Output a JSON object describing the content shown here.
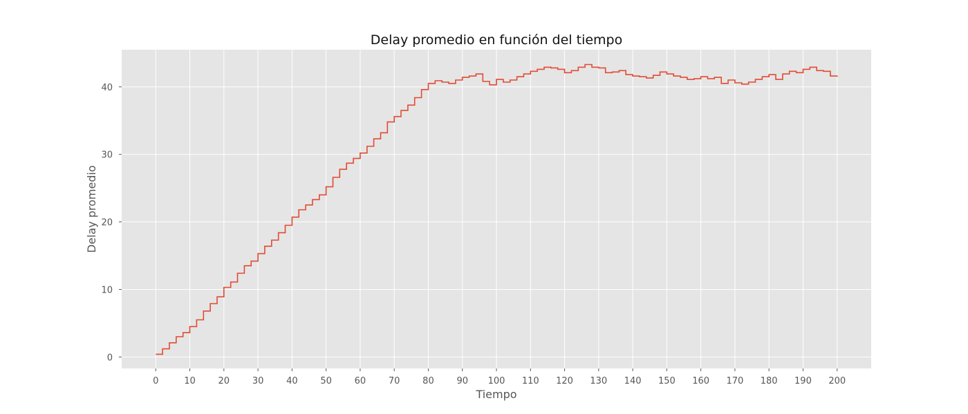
{
  "chart_data": {
    "type": "line",
    "step": true,
    "title": "Delay promedio en función del tiempo",
    "xlabel": "Tiempo",
    "ylabel": "Delay promedio",
    "xlim": [
      -10,
      210
    ],
    "ylim": [
      -1.7,
      45.5
    ],
    "xticks": [
      0,
      10,
      20,
      30,
      40,
      50,
      60,
      70,
      80,
      90,
      100,
      110,
      120,
      130,
      140,
      150,
      160,
      170,
      180,
      190,
      200
    ],
    "yticks": [
      0,
      10,
      20,
      30,
      40
    ],
    "grid": true,
    "line_color": "#E24A33",
    "background_color": "#E5E5E5",
    "grid_color": "#FFFFFF",
    "series": [
      {
        "x": [
          0,
          2,
          4,
          6,
          8,
          10,
          12,
          14,
          16,
          18,
          20,
          22,
          24,
          26,
          28,
          30,
          32,
          34,
          36,
          38,
          40,
          42,
          44,
          46,
          48,
          50,
          52,
          54,
          56,
          58,
          60,
          62,
          64,
          66,
          68,
          70,
          72,
          74,
          76,
          78,
          80,
          82,
          84,
          86,
          88,
          90,
          92,
          94,
          96,
          98,
          100,
          102,
          104,
          106,
          108,
          110,
          112,
          114,
          116,
          118,
          120,
          122,
          124,
          126,
          128,
          130,
          132,
          134,
          136,
          138,
          140,
          142,
          144,
          146,
          148,
          150,
          152,
          154,
          156,
          158,
          160,
          162,
          164,
          166,
          168,
          170,
          172,
          174,
          176,
          178,
          180,
          182,
          184,
          186,
          188,
          190,
          192,
          194,
          196,
          198,
          200
        ],
        "values": [
          0.4,
          1.2,
          2.1,
          3.0,
          3.6,
          4.5,
          5.5,
          6.8,
          7.9,
          8.9,
          10.3,
          11.1,
          12.4,
          13.5,
          14.2,
          15.3,
          16.4,
          17.3,
          18.4,
          19.5,
          20.7,
          21.8,
          22.5,
          23.3,
          24.0,
          25.2,
          26.6,
          27.8,
          28.7,
          29.4,
          30.2,
          31.2,
          32.3,
          33.2,
          34.8,
          35.6,
          36.5,
          37.3,
          38.4,
          39.6,
          40.5,
          40.9,
          40.7,
          40.5,
          41.0,
          41.4,
          41.6,
          41.9,
          40.8,
          40.3,
          41.1,
          40.7,
          41.0,
          41.5,
          41.9,
          42.3,
          42.6,
          42.9,
          42.8,
          42.6,
          42.1,
          42.4,
          42.9,
          43.3,
          42.9,
          42.8,
          42.1,
          42.2,
          42.4,
          41.8,
          41.6,
          41.5,
          41.3,
          41.7,
          42.2,
          41.9,
          41.6,
          41.4,
          41.1,
          41.2,
          41.5,
          41.2,
          41.4,
          40.5,
          41.0,
          40.6,
          40.4,
          40.7,
          41.1,
          41.5,
          41.8,
          41.1,
          41.9,
          42.3,
          42.1,
          42.6,
          42.9,
          42.4,
          42.3,
          41.6,
          41.5
        ]
      }
    ]
  }
}
